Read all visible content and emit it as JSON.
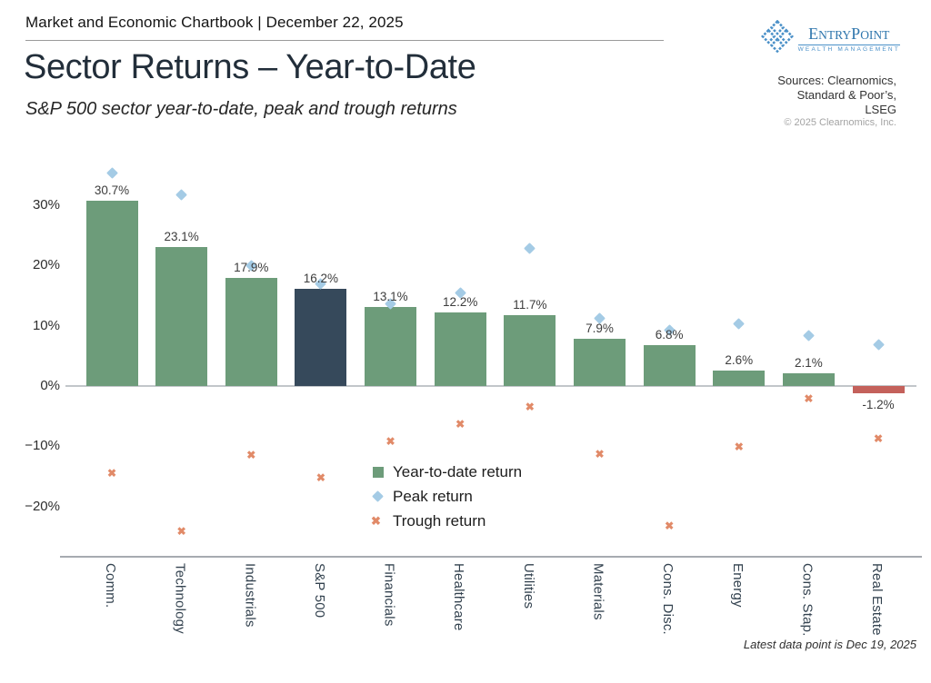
{
  "header": {
    "kicker": "Market and Economic Chartbook | December 22, 2025"
  },
  "title": "Sector Returns – Year-to-Date",
  "subtitle": "S&P 500 sector year-to-date, peak and trough returns",
  "logo": {
    "icon": "entrypoint-diamond-flower-icon",
    "name_part1": "E",
    "name_part2": "NTRY",
    "name_part3": "P",
    "name_part4": "OINT",
    "tagline": "WEALTH MANAGEMENT"
  },
  "sources": {
    "line1": "Sources: Clearnomics,",
    "line2": "Standard & Poor’s,",
    "line3": "LSEG",
    "copyright": "© 2025 Clearnomics, Inc."
  },
  "footnote": "Latest data point is Dec 19, 2025",
  "chart_data": {
    "type": "bar",
    "title": "Sector Returns – Year-to-Date",
    "subtitle": "S&P 500 sector year-to-date, peak and trough returns",
    "categories": [
      "Comm.",
      "Technology",
      "Industrials",
      "S&P 500",
      "Financials",
      "Healthcare",
      "Utilities",
      "Materials",
      "Cons. Disc.",
      "Energy",
      "Cons. Stap.",
      "Real Estate"
    ],
    "series": [
      {
        "name": "Year-to-date return",
        "type": "bar",
        "marker": "square",
        "values": [
          30.7,
          23.1,
          17.9,
          16.2,
          13.1,
          12.2,
          11.7,
          7.9,
          6.8,
          2.6,
          2.1,
          -1.2
        ],
        "labels": [
          "30.7%",
          "23.1%",
          "17.9%",
          "16.2%",
          "13.1%",
          "12.2%",
          "11.7%",
          "7.9%",
          "6.8%",
          "2.6%",
          "2.1%",
          "-1.2%"
        ]
      },
      {
        "name": "Peak return",
        "type": "scatter",
        "marker": "diamond",
        "values": [
          35.4,
          31.8,
          20.0,
          17.0,
          13.7,
          15.4,
          22.9,
          11.2,
          9.3,
          10.3,
          8.4,
          6.9
        ]
      },
      {
        "name": "Trough return",
        "type": "scatter",
        "marker": "x",
        "values": [
          -14.5,
          -24.1,
          -11.5,
          -15.2,
          -9.2,
          -6.4,
          -3.4,
          -11.3,
          -23.2,
          -10.1,
          -2.1,
          -8.7
        ]
      }
    ],
    "highlight_category": "S&P 500",
    "yticks": [
      {
        "value": 30,
        "label": "30%"
      },
      {
        "value": 20,
        "label": "20%"
      },
      {
        "value": 10,
        "label": "10%"
      },
      {
        "value": 0,
        "label": "0%"
      },
      {
        "value": -10,
        "label": "−10%"
      },
      {
        "value": -20,
        "label": "−20%"
      }
    ],
    "ylim": [
      -28,
      37
    ],
    "grid": false,
    "legend_position": "inside-bottom-center",
    "marker_glyphs": {
      "x": "✖"
    },
    "colors": {
      "bar_positive": "#6d9c7a",
      "bar_highlight": "#36495b",
      "bar_negative": "#c4615b",
      "peak_marker": "#a4cbe5",
      "trough_marker": "#e18a68"
    }
  }
}
